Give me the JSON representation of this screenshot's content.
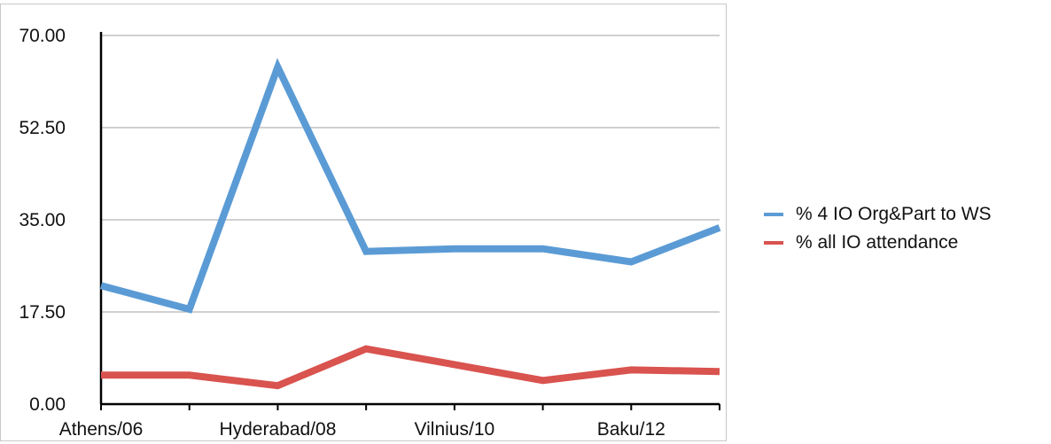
{
  "chart_data": {
    "type": "line",
    "title": "",
    "xlabel": "",
    "ylabel": "",
    "categories": [
      "Athens/06",
      "",
      "Hyderabad/08",
      "",
      "Vilnius/10",
      "",
      "Baku/12",
      ""
    ],
    "ylim": [
      0,
      70
    ],
    "yticks": [
      "70.00",
      "52.50",
      "35.00",
      "17.50",
      "0.00"
    ],
    "ytick_values": [
      70,
      52.5,
      35,
      17.5,
      0
    ],
    "grid": true,
    "legend_position": "right",
    "series": [
      {
        "name": "% 4 IO Org&Part to WS",
        "color": "#5b9bd5",
        "values": [
          22.5,
          18,
          64,
          29,
          29.5,
          29.5,
          27,
          33.5
        ]
      },
      {
        "name": "% all IO attendance",
        "color": "#d9534f",
        "values": [
          5.5,
          5.5,
          3.5,
          10.5,
          7.5,
          4.5,
          6.5,
          6.2
        ]
      }
    ]
  }
}
